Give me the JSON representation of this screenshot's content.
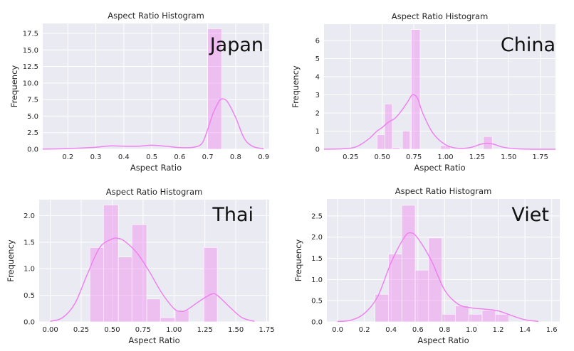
{
  "chart_data": [
    {
      "type": "histogram",
      "title": "Aspect Ratio Histogram",
      "xlabel": "Aspect Ratio",
      "ylabel": "Frequency",
      "annotation": "Japan",
      "xlim": [
        0.11,
        0.92
      ],
      "ylim": [
        0,
        19.0
      ],
      "xticks": [
        0.2,
        0.3,
        0.4,
        0.5,
        0.6,
        0.7,
        0.8,
        0.9
      ],
      "xtick_labels": [
        "0.2",
        "0.3",
        "0.4",
        "0.5",
        "0.6",
        "0.7",
        "0.8",
        "0.9"
      ],
      "yticks": [
        0,
        2.5,
        5.0,
        7.5,
        10.0,
        12.5,
        15.0,
        17.5
      ],
      "ytick_labels": [
        "0.0",
        "2.5",
        "5.0",
        "7.5",
        "10.0",
        "12.5",
        "15.0",
        "17.5"
      ],
      "bins": [
        {
          "x0": 0.7,
          "x1": 0.75,
          "value": 18.2
        }
      ],
      "kde": {
        "x": [
          0.11,
          0.2,
          0.3,
          0.35,
          0.4,
          0.45,
          0.5,
          0.55,
          0.6,
          0.65,
          0.68,
          0.7,
          0.72,
          0.74,
          0.75,
          0.77,
          0.8,
          0.83,
          0.86,
          0.9
        ],
        "y": [
          0.02,
          0.1,
          0.3,
          0.5,
          0.45,
          0.45,
          0.6,
          0.45,
          0.25,
          0.3,
          0.9,
          3.0,
          5.5,
          7.2,
          7.6,
          7.2,
          4.8,
          1.7,
          0.45,
          0.05
        ]
      },
      "color": "#ee82ee"
    },
    {
      "type": "histogram",
      "title": "Aspect Ratio Histogram",
      "xlabel": "Aspect Ratio",
      "ylabel": "Frequency",
      "annotation": "China",
      "xlim": [
        0.04,
        1.87
      ],
      "ylim": [
        0,
        6.9
      ],
      "xticks": [
        0.25,
        0.5,
        0.75,
        1.0,
        1.25,
        1.5,
        1.75
      ],
      "xtick_labels": [
        "0.25",
        "0.50",
        "0.75",
        "1.00",
        "1.25",
        "1.50",
        "1.75"
      ],
      "yticks": [
        0,
        1,
        2,
        3,
        4,
        5,
        6
      ],
      "ytick_labels": [
        "0",
        "1",
        "2",
        "3",
        "4",
        "5",
        "6"
      ],
      "bins": [
        {
          "x0": 0.46,
          "x1": 0.52,
          "value": 0.8
        },
        {
          "x0": 0.52,
          "x1": 0.58,
          "value": 2.5
        },
        {
          "x0": 0.58,
          "x1": 0.64,
          "value": 0.1
        },
        {
          "x0": 0.66,
          "x1": 0.72,
          "value": 1.0
        },
        {
          "x0": 0.73,
          "x1": 0.8,
          "value": 6.6
        },
        {
          "x0": 0.96,
          "x1": 1.04,
          "value": 0.2
        },
        {
          "x0": 1.3,
          "x1": 1.37,
          "value": 0.7
        }
      ],
      "kde": {
        "x": [
          0.04,
          0.2,
          0.3,
          0.4,
          0.45,
          0.5,
          0.55,
          0.6,
          0.65,
          0.7,
          0.74,
          0.78,
          0.82,
          0.9,
          1.0,
          1.1,
          1.2,
          1.28,
          1.33,
          1.38,
          1.45,
          1.55,
          1.7,
          1.87
        ],
        "y": [
          0,
          0.03,
          0.15,
          0.6,
          0.95,
          1.2,
          1.5,
          1.7,
          2.1,
          2.6,
          3.0,
          2.8,
          2.0,
          0.9,
          0.25,
          0.05,
          0.1,
          0.28,
          0.33,
          0.28,
          0.12,
          0.03,
          0,
          0
        ]
      },
      "color": "#ee82ee"
    },
    {
      "type": "histogram",
      "title": "Aspect Ratio Histogram",
      "xlabel": "Aspect Ratio",
      "ylabel": "Frequency",
      "annotation": "Thai",
      "xlim": [
        -0.09,
        1.77
      ],
      "ylim": [
        0,
        2.3
      ],
      "xticks": [
        0.0,
        0.25,
        0.5,
        0.75,
        1.0,
        1.25,
        1.5,
        1.75
      ],
      "xtick_labels": [
        "0.00",
        "0.25",
        "0.50",
        "0.75",
        "1.00",
        "1.25",
        "1.50",
        "1.75"
      ],
      "yticks": [
        0,
        0.5,
        1.0,
        1.5,
        2.0
      ],
      "ytick_labels": [
        "0.0",
        "0.5",
        "1.0",
        "1.5",
        "2.0"
      ],
      "bins": [
        {
          "x0": 0.32,
          "x1": 0.43,
          "value": 1.4
        },
        {
          "x0": 0.43,
          "x1": 0.55,
          "value": 2.2
        },
        {
          "x0": 0.55,
          "x1": 0.66,
          "value": 1.22
        },
        {
          "x0": 0.66,
          "x1": 0.78,
          "value": 1.83
        },
        {
          "x0": 0.78,
          "x1": 0.89,
          "value": 0.43
        },
        {
          "x0": 0.89,
          "x1": 1.01,
          "value": 0.08
        },
        {
          "x0": 1.01,
          "x1": 1.12,
          "value": 0.22
        },
        {
          "x0": 1.24,
          "x1": 1.35,
          "value": 1.4
        }
      ],
      "kde": {
        "x": [
          0.0,
          0.1,
          0.2,
          0.3,
          0.4,
          0.5,
          0.55,
          0.6,
          0.7,
          0.8,
          0.9,
          1.0,
          1.05,
          1.1,
          1.2,
          1.3,
          1.35,
          1.45,
          1.55,
          1.65
        ],
        "y": [
          0.01,
          0.08,
          0.35,
          0.9,
          1.4,
          1.56,
          1.57,
          1.52,
          1.3,
          0.95,
          0.55,
          0.25,
          0.2,
          0.22,
          0.38,
          0.52,
          0.5,
          0.28,
          0.08,
          0.01
        ]
      },
      "color": "#ee82ee"
    },
    {
      "type": "histogram",
      "title": "Aspect Ratio Histogram",
      "xlabel": "Aspect Ratio",
      "ylabel": "Frequency",
      "annotation": "Viet",
      "xlim": [
        -0.08,
        1.66
      ],
      "ylim": [
        0,
        2.9
      ],
      "xticks": [
        0.0,
        0.2,
        0.4,
        0.6,
        0.8,
        1.0,
        1.2,
        1.4,
        1.6
      ],
      "xtick_labels": [
        "0.0",
        "0.2",
        "0.4",
        "0.6",
        "0.8",
        "1.0",
        "1.2",
        "1.4",
        "1.6"
      ],
      "yticks": [
        0,
        0.5,
        1.0,
        1.5,
        2.0,
        2.5
      ],
      "ytick_labels": [
        "0.0",
        "0.5",
        "1.0",
        "1.5",
        "2.0",
        "2.5"
      ],
      "bins": [
        {
          "x0": 0.28,
          "x1": 0.38,
          "value": 0.65
        },
        {
          "x0": 0.38,
          "x1": 0.48,
          "value": 1.6
        },
        {
          "x0": 0.48,
          "x1": 0.58,
          "value": 2.75
        },
        {
          "x0": 0.58,
          "x1": 0.68,
          "value": 1.22
        },
        {
          "x0": 0.68,
          "x1": 0.78,
          "value": 1.98
        },
        {
          "x0": 0.78,
          "x1": 0.88,
          "value": 0.18
        },
        {
          "x0": 0.88,
          "x1": 0.98,
          "value": 0.38
        },
        {
          "x0": 0.98,
          "x1": 1.08,
          "value": 0.18
        },
        {
          "x0": 1.08,
          "x1": 1.18,
          "value": 0.27
        },
        {
          "x0": 1.18,
          "x1": 1.28,
          "value": 0.18
        }
      ],
      "kde": {
        "x": [
          0.0,
          0.1,
          0.2,
          0.3,
          0.4,
          0.5,
          0.55,
          0.6,
          0.7,
          0.8,
          0.9,
          1.0,
          1.1,
          1.2,
          1.3,
          1.4,
          1.5
        ],
        "y": [
          0.01,
          0.04,
          0.2,
          0.6,
          1.4,
          2.0,
          2.1,
          1.97,
          1.45,
          0.75,
          0.42,
          0.33,
          0.3,
          0.26,
          0.15,
          0.05,
          0.01
        ]
      },
      "color": "#ee82ee"
    }
  ]
}
